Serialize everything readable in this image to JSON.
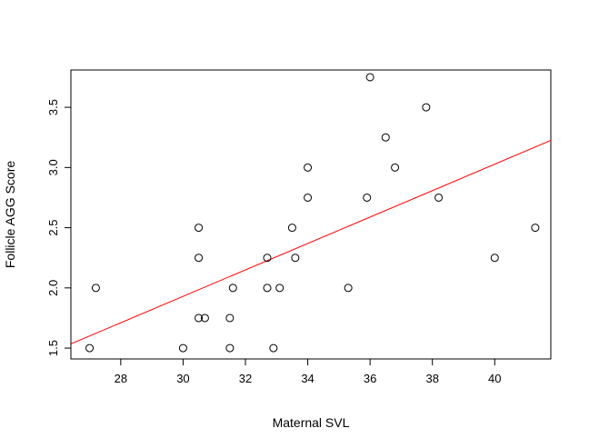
{
  "chart_data": {
    "type": "scatter",
    "title": "",
    "xlabel": "Maternal SVL",
    "ylabel": "Follicle AGG Score",
    "xlim": [
      26.4,
      41.8
    ],
    "ylim": [
      1.41,
      3.81
    ],
    "x_ticks": [
      28,
      30,
      32,
      34,
      36,
      38,
      40
    ],
    "y_ticks": [
      1.5,
      2.0,
      2.5,
      3.0,
      3.5
    ],
    "x_tick_labels": [
      "28",
      "30",
      "32",
      "34",
      "36",
      "38",
      "40"
    ],
    "y_tick_labels": [
      "1.5",
      "2.0",
      "2.5",
      "3.0",
      "3.5"
    ],
    "grid": false,
    "legend": "none",
    "marker_color": "#000000",
    "fit_line_color": "#ff0000",
    "points": [
      {
        "x": 27.0,
        "y": 1.5
      },
      {
        "x": 27.2,
        "y": 2.0
      },
      {
        "x": 30.0,
        "y": 1.5
      },
      {
        "x": 30.5,
        "y": 2.5
      },
      {
        "x": 30.5,
        "y": 2.25
      },
      {
        "x": 30.5,
        "y": 1.75
      },
      {
        "x": 30.7,
        "y": 1.75
      },
      {
        "x": 31.5,
        "y": 1.75
      },
      {
        "x": 31.5,
        "y": 1.5
      },
      {
        "x": 31.6,
        "y": 2.0
      },
      {
        "x": 32.7,
        "y": 2.25
      },
      {
        "x": 32.7,
        "y": 2.0
      },
      {
        "x": 32.9,
        "y": 1.5
      },
      {
        "x": 33.1,
        "y": 2.0
      },
      {
        "x": 33.5,
        "y": 2.5
      },
      {
        "x": 33.6,
        "y": 2.25
      },
      {
        "x": 34.0,
        "y": 3.0
      },
      {
        "x": 34.0,
        "y": 2.75
      },
      {
        "x": 35.3,
        "y": 2.0
      },
      {
        "x": 35.9,
        "y": 2.75
      },
      {
        "x": 36.0,
        "y": 3.75
      },
      {
        "x": 36.5,
        "y": 3.25
      },
      {
        "x": 36.8,
        "y": 3.0
      },
      {
        "x": 37.8,
        "y": 3.5
      },
      {
        "x": 38.2,
        "y": 2.75
      },
      {
        "x": 40.0,
        "y": 2.25
      },
      {
        "x": 41.3,
        "y": 2.5
      }
    ],
    "fit_line": {
      "x": [
        26.4,
        41.8
      ],
      "y": [
        1.535,
        3.225
      ]
    }
  }
}
